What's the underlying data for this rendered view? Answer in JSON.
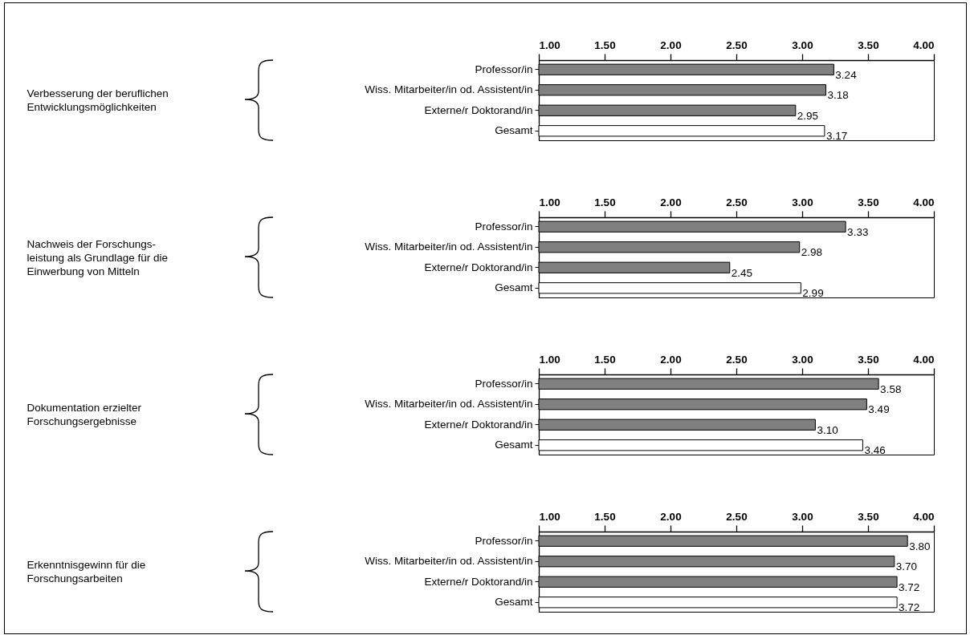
{
  "chart_data": [
    {
      "type": "bar",
      "orientation": "horizontal",
      "ylabel": "Verbesserung der beruflichen Entwicklungsmöglichkeiten",
      "categories": [
        "Professor/in",
        "Wiss. Mitarbeiter/in od. Assistent/in",
        "Externe/r Doktorand/in",
        "Gesamt"
      ],
      "values": [
        3.24,
        3.18,
        2.95,
        3.17
      ],
      "value_labels": [
        "3.24",
        "3.18",
        "2.95",
        "3.17"
      ],
      "colors": [
        "#808080",
        "#808080",
        "#808080",
        "#ffffff"
      ],
      "xlim": [
        1,
        4
      ],
      "xticks": [
        {
          "value": 1,
          "label": "1.00"
        },
        {
          "value": 1.5,
          "label": "1.50"
        },
        {
          "value": 2,
          "label": "2.00"
        },
        {
          "value": 2.5,
          "label": "2.50"
        },
        {
          "value": 3,
          "label": "3.00"
        },
        {
          "value": 3.5,
          "label": "3.50"
        },
        {
          "value": 4,
          "label": "4.00"
        }
      ]
    },
    {
      "type": "bar",
      "orientation": "horizontal",
      "ylabel": "Nachweis der Forschungs-leistung als Grundlage für die Einwerbung von Mitteln",
      "categories": [
        "Professor/in",
        "Wiss. Mitarbeiter/in od. Assistent/in",
        "Externe/r Doktorand/in",
        "Gesamt"
      ],
      "values": [
        3.33,
        2.98,
        2.45,
        2.99
      ],
      "value_labels": [
        "3.33",
        "2.98",
        "2.45",
        "2.99"
      ],
      "colors": [
        "#808080",
        "#808080",
        "#808080",
        "#ffffff"
      ],
      "xlim": [
        1,
        4
      ],
      "xticks": [
        {
          "value": 1,
          "label": "1.00"
        },
        {
          "value": 1.5,
          "label": "1.50"
        },
        {
          "value": 2,
          "label": "2.00"
        },
        {
          "value": 2.5,
          "label": "2.50"
        },
        {
          "value": 3,
          "label": "3.00"
        },
        {
          "value": 3.5,
          "label": "3.50"
        },
        {
          "value": 4,
          "label": "4.00"
        }
      ]
    },
    {
      "type": "bar",
      "orientation": "horizontal",
      "ylabel": "Dokumentation erzielter Forschungsergebnisse",
      "categories": [
        "Professor/in",
        "Wiss. Mitarbeiter/in od. Assistent/in",
        "Externe/r Doktorand/in",
        "Gesamt"
      ],
      "values": [
        3.58,
        3.49,
        3.1,
        3.46
      ],
      "value_labels": [
        "3.58",
        "3.49",
        "3.10",
        "3.46"
      ],
      "colors": [
        "#808080",
        "#808080",
        "#808080",
        "#ffffff"
      ],
      "xlim": [
        1,
        4
      ],
      "xticks": [
        {
          "value": 1,
          "label": "1.00"
        },
        {
          "value": 1.5,
          "label": "1.50"
        },
        {
          "value": 2,
          "label": "2.00"
        },
        {
          "value": 2.5,
          "label": "2.50"
        },
        {
          "value": 3,
          "label": "3.00"
        },
        {
          "value": 3.5,
          "label": "3.50"
        },
        {
          "value": 4,
          "label": "4.00"
        }
      ]
    },
    {
      "type": "bar",
      "orientation": "horizontal",
      "ylabel": "Erkenntnisgewinn für die Forschungsarbeiten",
      "categories": [
        "Professor/in",
        "Wiss. Mitarbeiter/in od. Assistent/in",
        "Externe/r Doktorand/in",
        "Gesamt"
      ],
      "values": [
        3.8,
        3.7,
        3.72,
        3.72
      ],
      "value_labels": [
        "3.80",
        "3.70",
        "3.72",
        "3.72"
      ],
      "colors": [
        "#808080",
        "#808080",
        "#808080",
        "#ffffff"
      ],
      "xlim": [
        1,
        4
      ],
      "xticks": [
        {
          "value": 1,
          "label": "1.00"
        },
        {
          "value": 1.5,
          "label": "1.50"
        },
        {
          "value": 2,
          "label": "2.00"
        },
        {
          "value": 2.5,
          "label": "2.50"
        },
        {
          "value": 3,
          "label": "3.00"
        },
        {
          "value": 3.5,
          "label": "3.50"
        },
        {
          "value": 4,
          "label": "4.00"
        }
      ]
    }
  ]
}
